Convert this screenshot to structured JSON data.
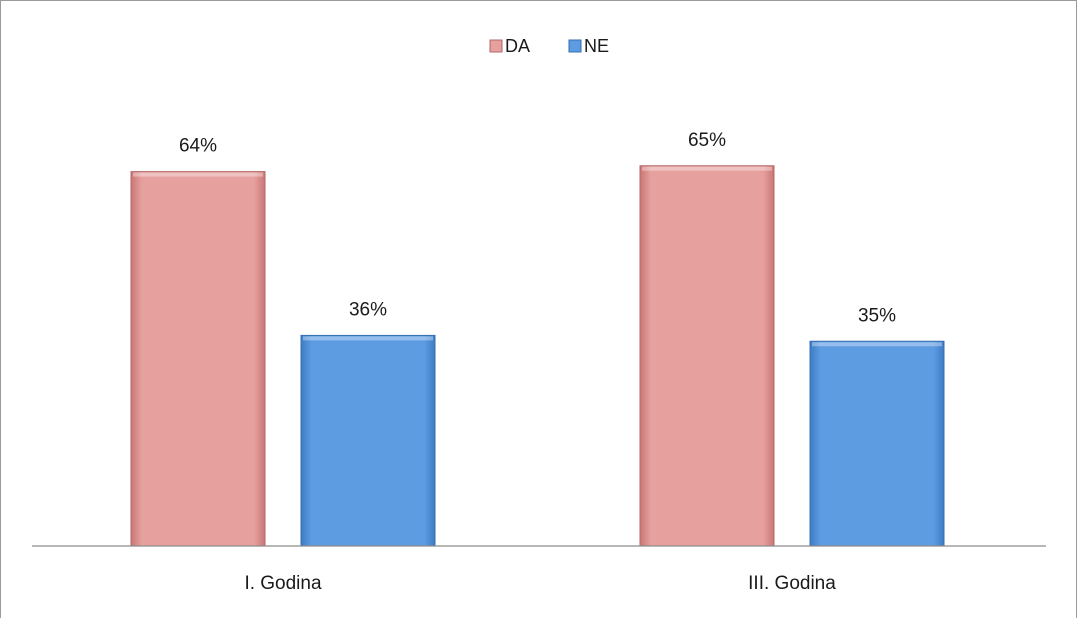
{
  "chart_data": {
    "type": "bar",
    "categories": [
      "I. Godina",
      "III. Godina"
    ],
    "series": [
      {
        "name": "DA",
        "values": [
          64,
          65
        ],
        "labels": [
          "64%",
          "65%"
        ],
        "color": "#e59c9a"
      },
      {
        "name": "NE",
        "values": [
          36,
          35
        ],
        "labels": [
          "36%",
          "35%"
        ],
        "color": "#5b9be0"
      }
    ],
    "ylim": [
      0,
      70
    ],
    "grid": false,
    "legend_position": "top"
  }
}
